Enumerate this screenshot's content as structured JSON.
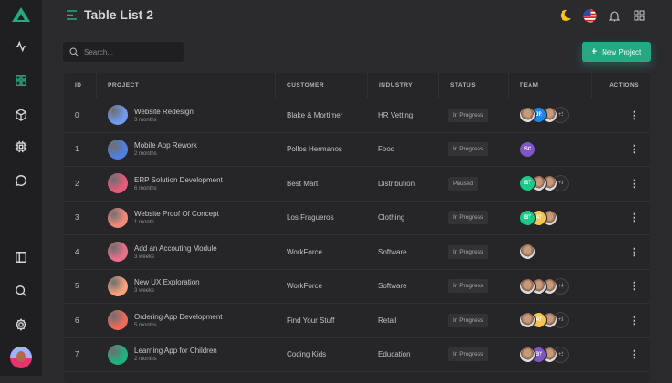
{
  "header": {
    "title": "Table List 2",
    "new_project_label": "New Project",
    "search_placeholder": "Search..."
  },
  "colors": {
    "accent": "#26a983",
    "background": "#2b2b2e",
    "sidebar": "#1f1f21"
  },
  "table": {
    "columns": [
      "ID",
      "PROJECT",
      "CUSTOMER",
      "INDUSTRY",
      "STATUS",
      "TEAM",
      "ACTIONS"
    ],
    "rows": [
      {
        "id": "0",
        "project": "Website Redesign",
        "duration": "3 months",
        "customer": "Blake & Mortimer",
        "industry": "HR Vetting",
        "status": "In Progress",
        "color": "#6f9bf0",
        "team": [
          {
            "t": "photo"
          },
          {
            "t": "JR",
            "c": "#1e88e5"
          },
          {
            "t": "photo"
          }
        ],
        "more": "+2"
      },
      {
        "id": "1",
        "project": "Mobile App Rework",
        "duration": "2 months",
        "customer": "Pollos Hermanos",
        "industry": "Food",
        "status": "In Progress",
        "color": "#4f7fe0",
        "team": [
          {
            "t": "SC",
            "c": "#7e57c2"
          }
        ],
        "more": ""
      },
      {
        "id": "2",
        "project": "ERP Solution Development",
        "duration": "6 months",
        "customer": "Best Mart",
        "industry": "Distribution",
        "status": "Paused",
        "color": "#e85a7a",
        "team": [
          {
            "t": "BT",
            "c": "#1dc98a"
          },
          {
            "t": "photo"
          },
          {
            "t": "photo"
          }
        ],
        "more": "+3"
      },
      {
        "id": "3",
        "project": "Website Proof Of Concept",
        "duration": "1 month",
        "customer": "Los Fragueros",
        "industry": "Clothing",
        "status": "In Progress",
        "color": "#f58a78",
        "team": [
          {
            "t": "BT",
            "c": "#1dc98a"
          },
          {
            "t": "AT",
            "c": "#f5c451"
          },
          {
            "t": "photo"
          }
        ],
        "more": ""
      },
      {
        "id": "4",
        "project": "Add an Accouting Module",
        "duration": "3 weeks",
        "customer": "WorkForce",
        "industry": "Software",
        "status": "In Progress",
        "color": "#e8708a",
        "team": [
          {
            "t": "photo"
          }
        ],
        "more": ""
      },
      {
        "id": "5",
        "project": "New UX Exploration",
        "duration": "3 weeks",
        "customer": "WorkForce",
        "industry": "Software",
        "status": "In Progress",
        "color": "#f7a27a",
        "team": [
          {
            "t": "photo"
          },
          {
            "t": "photo"
          },
          {
            "t": "photo"
          }
        ],
        "more": "+4"
      },
      {
        "id": "6",
        "project": "Ordering App Development",
        "duration": "5 months",
        "customer": "Find Your Stuff",
        "industry": "Retail",
        "status": "In Progress",
        "color": "#f06a5a",
        "team": [
          {
            "t": "photo"
          },
          {
            "t": "AT",
            "c": "#f5c451"
          },
          {
            "t": "photo"
          }
        ],
        "more": "+3"
      },
      {
        "id": "7",
        "project": "Learning App for Children",
        "duration": "2 months",
        "customer": "Coding Kids",
        "industry": "Education",
        "status": "In Progress",
        "color": "#20b27e",
        "team": [
          {
            "t": "photo"
          },
          {
            "t": "BY",
            "c": "#7e57c2"
          },
          {
            "t": "photo"
          }
        ],
        "more": "+2"
      }
    ]
  }
}
